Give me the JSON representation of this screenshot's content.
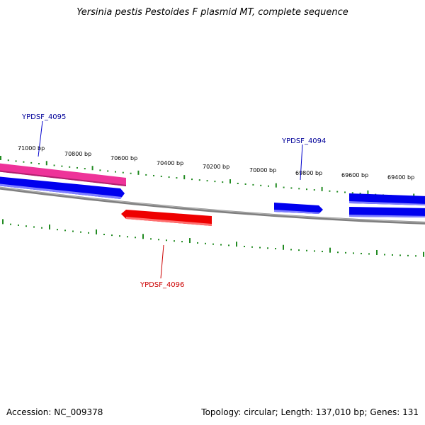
{
  "title": "Yersinia pestis Pestoides F plasmid MT, complete sequence",
  "footer": {
    "accession": "Accession: NC_009378",
    "topology": "Topology: circular; Length: 137,010 bp; Genes: 131"
  },
  "tick_labels": [
    "71000 bp",
    "70800 bp",
    "70600 bp",
    "70400 bp",
    "70200 bp",
    "70000 bp",
    "69800 bp",
    "69600 bp",
    "69400 bp"
  ],
  "gene_labels": {
    "g4095": "YPDSF_4095",
    "g4094": "YPDSF_4094",
    "g4096": "YPDSF_4096"
  },
  "colors": {
    "backbone": "#808080",
    "tick": "#228B22",
    "forward_gene": "#0000ee",
    "reverse_gene": "#ee0000",
    "feature_pink": "#ee3399",
    "label_blue": "#000099",
    "label_red": "#cc0000"
  }
}
